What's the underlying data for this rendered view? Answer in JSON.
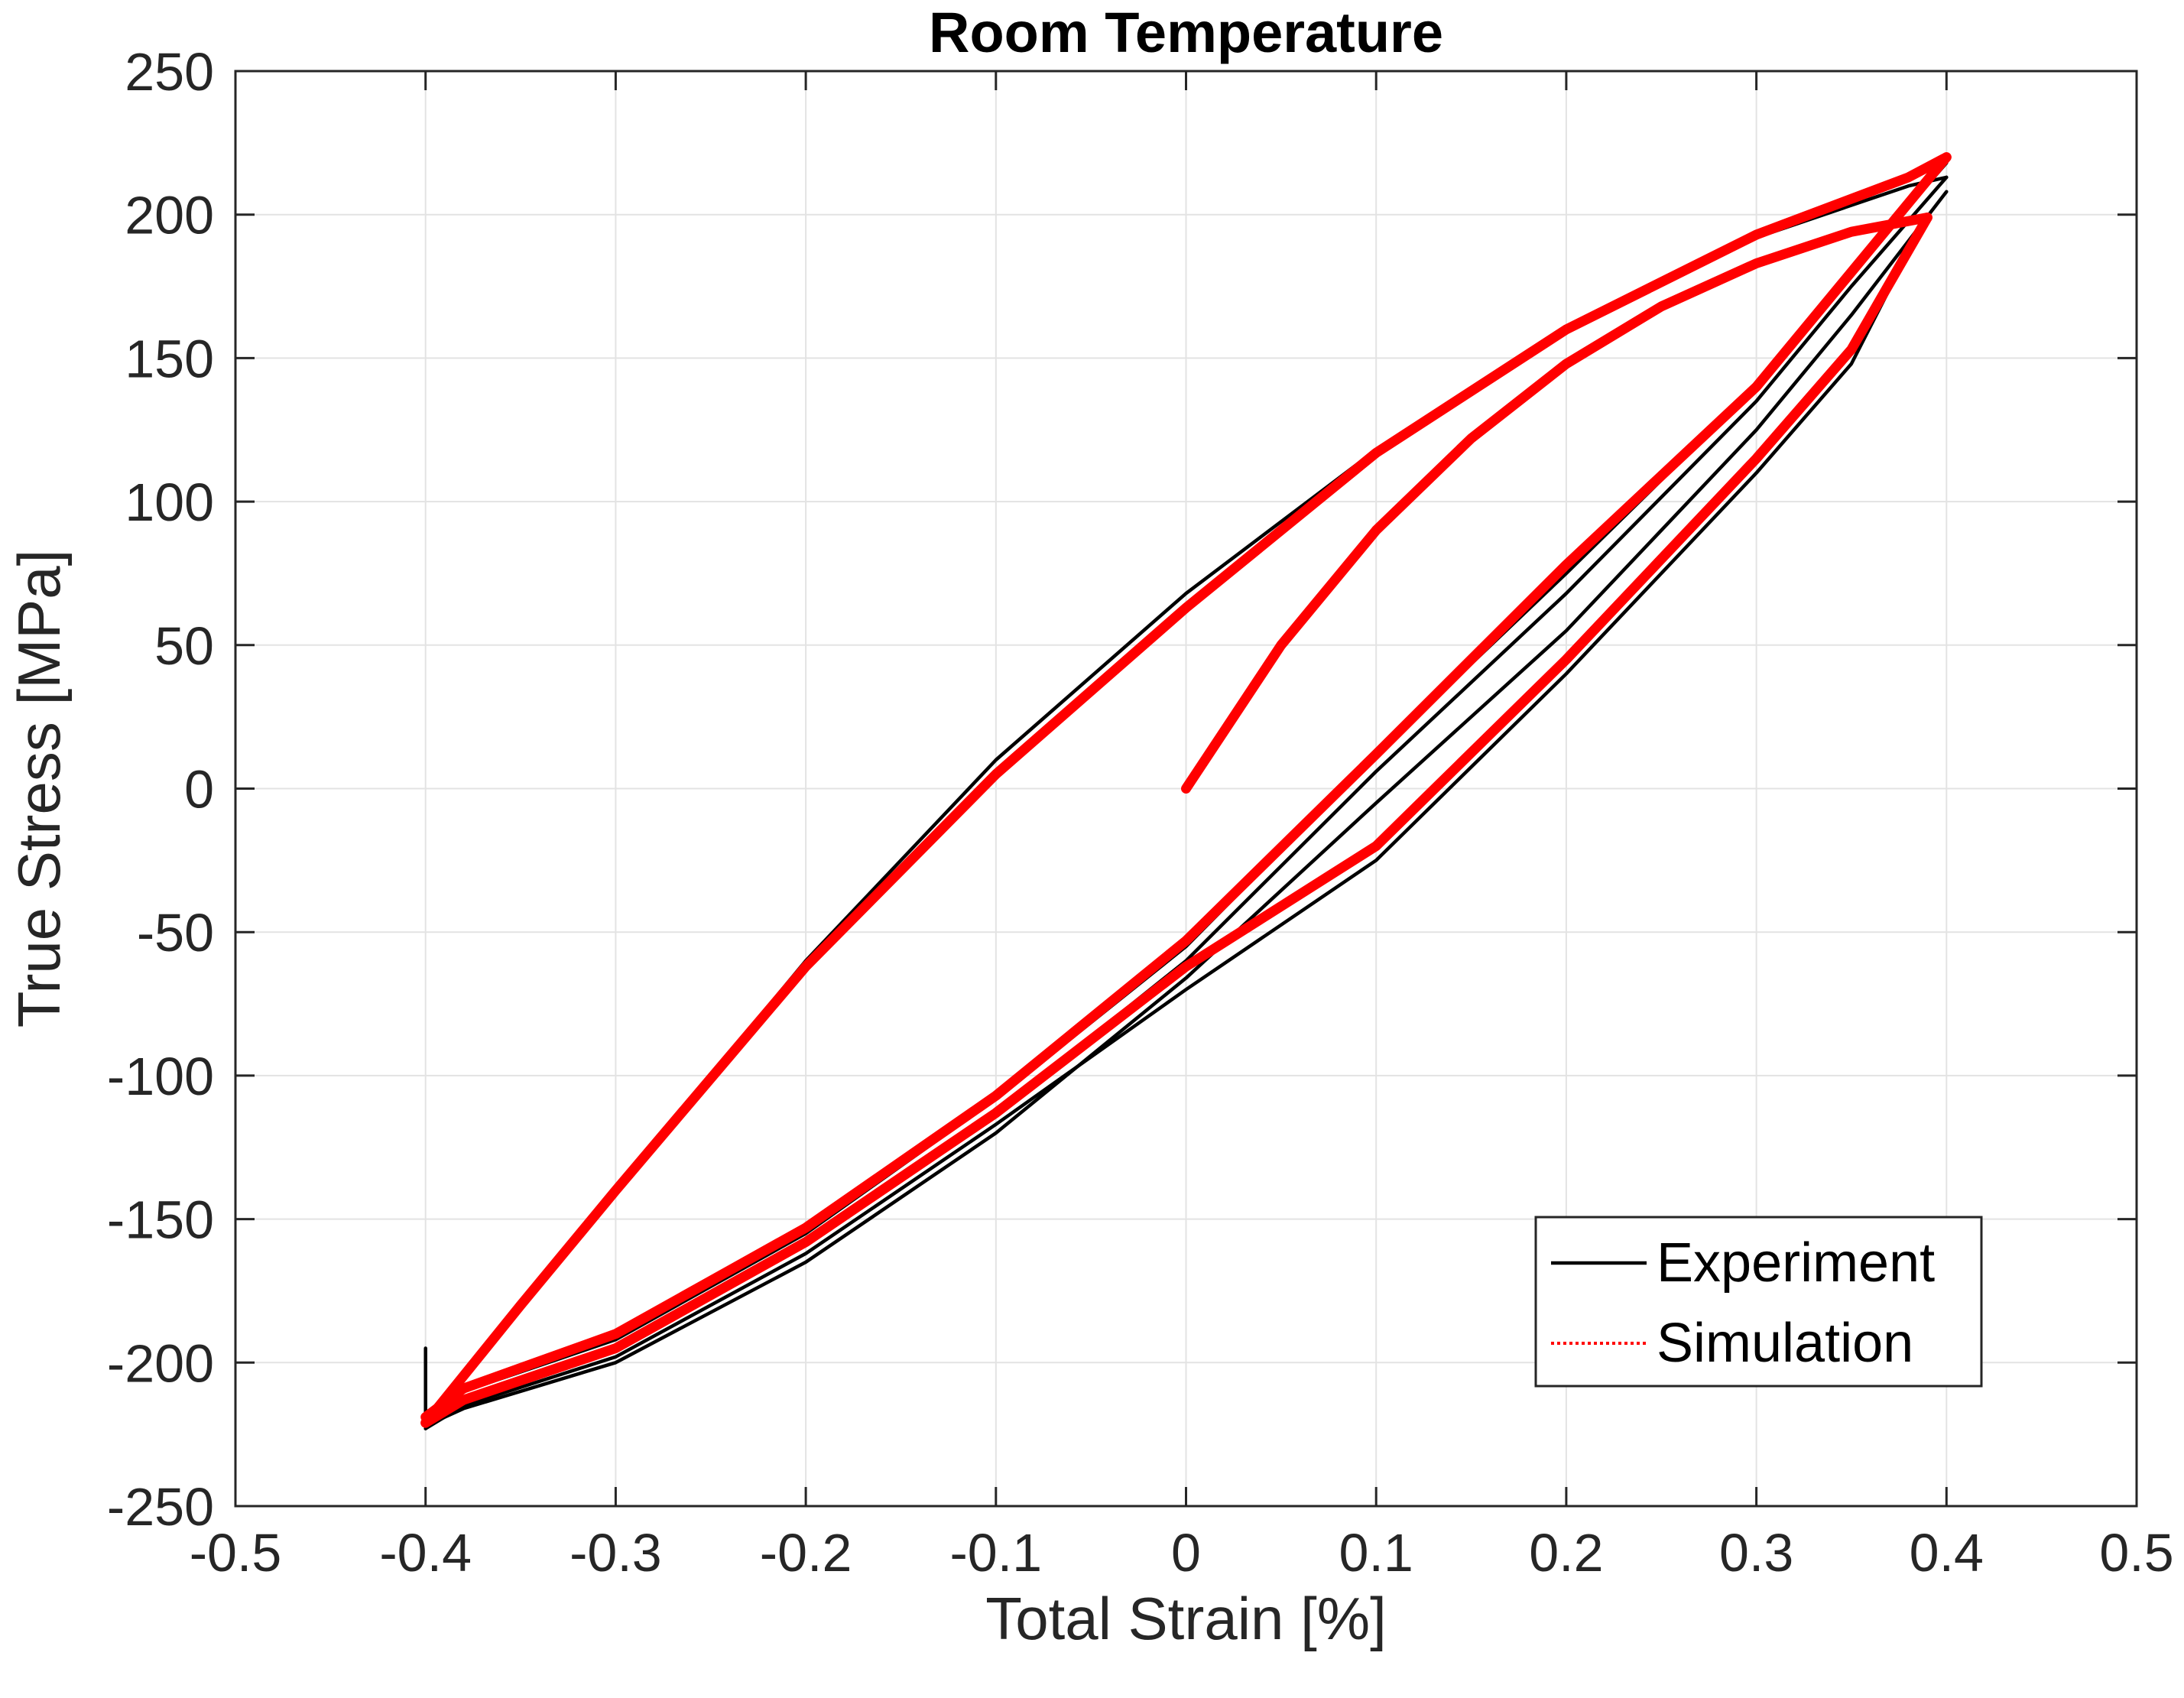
{
  "chart_data": {
    "type": "line",
    "title": "Room Temperature",
    "xlabel": "Total Strain [%]",
    "ylabel": "True Stress [MPa]",
    "xlim": [
      -0.5,
      0.5
    ],
    "ylim": [
      -250,
      250
    ],
    "xticks": [
      -0.5,
      -0.4,
      -0.3,
      -0.2,
      -0.1,
      0,
      0.1,
      0.2,
      0.3,
      0.4,
      0.5
    ],
    "xtick_labels": [
      "-0.5",
      "-0.4",
      "-0.3",
      "-0.2",
      "-0.1",
      "0",
      "0.1",
      "0.2",
      "0.3",
      "0.4",
      "0.5"
    ],
    "yticks": [
      -250,
      -200,
      -150,
      -100,
      -50,
      0,
      50,
      100,
      150,
      200,
      250
    ],
    "ytick_labels": [
      "-250",
      "-200",
      "-150",
      "-100",
      "-50",
      "0",
      "50",
      "100",
      "150",
      "200",
      "250"
    ],
    "grid": true,
    "legend_location": "bottom-right",
    "series": [
      {
        "name": "Experiment",
        "color": "#000000",
        "style": "solid",
        "segments": [
          {
            "x": [
              0,
              0.05,
              0.1,
              0.15,
              0.2,
              0.25,
              0.3,
              0.35,
              0.39
            ],
            "y": [
              0,
              50,
              90,
              122,
              148,
              168,
              183,
              194,
              200
            ]
          },
          {
            "x": [
              0.39,
              0.35,
              0.3,
              0.2,
              0.1,
              0,
              -0.1,
              -0.2,
              -0.3,
              -0.38,
              -0.4
            ],
            "y": [
              200,
              148,
              110,
              40,
              -25,
              -70,
              -117,
              -162,
              -198,
              -215,
              -223
            ]
          },
          {
            "x": [
              -0.4,
              -0.35,
              -0.3,
              -0.2,
              -0.1,
              0,
              0.1,
              0.2,
              0.3,
              0.38,
              0.4
            ],
            "y": [
              -223,
              -180,
              -140,
              -60,
              10,
              68,
              118,
              160,
              192,
              210,
              213
            ]
          },
          {
            "x": [
              0.4,
              0.35,
              0.3,
              0.2,
              0.1,
              0,
              -0.1,
              -0.2,
              -0.3,
              -0.38,
              -0.4
            ],
            "y": [
              213,
              175,
              135,
              68,
              6,
              -60,
              -113,
              -158,
              -195,
              -212,
              -220
            ]
          },
          {
            "x": [
              0.4,
              0.35,
              0.3,
              0.2,
              0.1,
              0,
              -0.1,
              -0.2,
              -0.3,
              -0.38,
              -0.4
            ],
            "y": [
              208,
              165,
              125,
              55,
              -5,
              -66,
              -120,
              -165,
              -200,
              -216,
              -222
            ]
          },
          {
            "x": [
              0.4,
              0.35,
              0.3,
              0.2,
              0.1,
              0,
              -0.1,
              -0.2,
              -0.3,
              -0.38,
              -0.4
            ],
            "y": [
              218,
              180,
              140,
              75,
              12,
              -55,
              -108,
              -155,
              -192,
              -210,
              -219
            ]
          },
          {
            "x": [
              -0.4,
              -0.4
            ],
            "y": [
              -195,
              -220
            ]
          }
        ]
      },
      {
        "name": "Simulation",
        "color": "#ff0000",
        "style": "dotted",
        "segments": [
          {
            "x": [
              0,
              0.05,
              0.1,
              0.15,
              0.2,
              0.25,
              0.3,
              0.35,
              0.39
            ],
            "y": [
              0,
              50,
              90,
              122,
              148,
              168,
              183,
              194,
              199
            ]
          },
          {
            "x": [
              0.39,
              0.35,
              0.3,
              0.2,
              0.1,
              0,
              -0.1,
              -0.2,
              -0.3,
              -0.38,
              -0.4
            ],
            "y": [
              199,
              153,
              115,
              45,
              -20,
              -62,
              -113,
              -158,
              -195,
              -213,
              -221
            ]
          },
          {
            "x": [
              -0.4,
              -0.35,
              -0.3,
              -0.2,
              -0.1,
              0,
              0.1,
              0.2,
              0.3,
              0.38,
              0.4
            ],
            "y": [
              -221,
              -180,
              -140,
              -62,
              5,
              63,
              117,
              160,
              193,
              213,
              220
            ]
          },
          {
            "x": [
              0.4,
              0.35,
              0.3,
              0.2,
              0.1,
              0,
              -0.1,
              -0.2,
              -0.3,
              -0.38,
              -0.4
            ],
            "y": [
              220,
              180,
              140,
              78,
              12,
              -53,
              -107,
              -153,
              -190,
              -209,
              -219
            ]
          }
        ]
      }
    ]
  }
}
